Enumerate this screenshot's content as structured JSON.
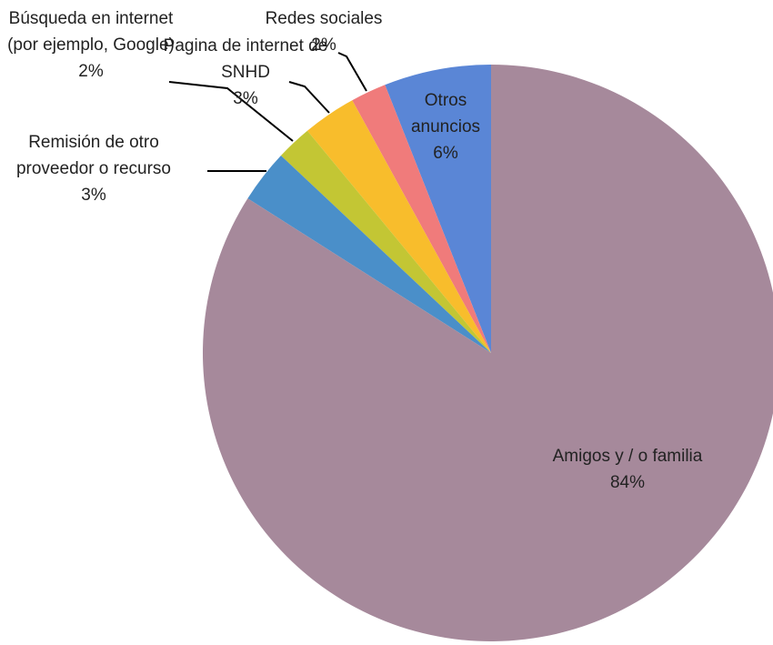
{
  "chart_data": {
    "type": "pie",
    "categories": [
      "Amigos y / o familia",
      "Remisión de otro proveedor o recurso",
      "Búsqueda en internet (por ejemplo, Google)",
      "Pagina de internet de SNHD",
      "Redes sociales",
      "Otros anuncios"
    ],
    "values": [
      84,
      3,
      2,
      3,
      2,
      6
    ],
    "value_labels": [
      "84%",
      "3%",
      "2%",
      "3%",
      "2%",
      "6%"
    ],
    "colors": [
      "#a6899b",
      "#4a8fc9",
      "#c3c634",
      "#f8bd2c",
      "#f07b7b",
      "#5a86d6"
    ]
  }
}
